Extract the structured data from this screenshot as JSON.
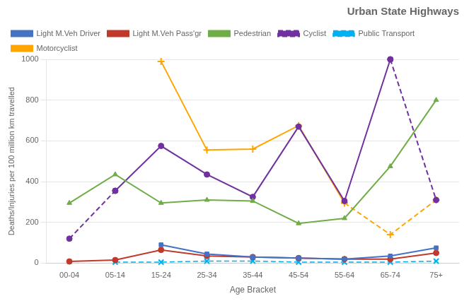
{
  "chart_data": {
    "type": "line",
    "title": "Urban State Highways",
    "x_label": "Age Bracket",
    "y_label": "Deaths/Injuries per 100 million km travelled",
    "categories": [
      "00-04",
      "05-14",
      "15-24",
      "25-34",
      "35-44",
      "45-54",
      "55-64",
      "65-74",
      "75+"
    ],
    "series": [
      {
        "name": "Light M.Veh Driver",
        "color": "#4472C4",
        "marker": "square",
        "line_style": "solid",
        "values": [
          null,
          null,
          90,
          45,
          30,
          25,
          20,
          35,
          75
        ]
      },
      {
        "name": "Light M.Veh Pass'gr",
        "color": "#C0392B",
        "marker": "circle",
        "line_style": "solid",
        "values": [
          8,
          15,
          65,
          35,
          30,
          25,
          20,
          20,
          50
        ]
      },
      {
        "name": "Pedestrian",
        "color": "#70AD47",
        "marker": "triangle",
        "line_style": "solid",
        "values": [
          295,
          435,
          295,
          310,
          305,
          195,
          220,
          475,
          800
        ]
      },
      {
        "name": "Cyclist",
        "color": "#7030A0",
        "marker": "circle",
        "line_style": "dashed",
        "values": [
          120,
          355,
          null,
          null,
          null,
          null,
          null,
          null,
          null
        ]
      },
      {
        "name": "Cyclist",
        "color": "#7030A0",
        "marker": "circle",
        "line_style": "solid",
        "values": [
          null,
          355,
          575,
          435,
          325,
          670,
          305,
          1000,
          null
        ]
      },
      {
        "name": "Cyclist",
        "color": "#7030A0",
        "marker": "circle",
        "line_style": "dashed",
        "values": [
          null,
          null,
          null,
          null,
          null,
          null,
          null,
          1000,
          310
        ]
      },
      {
        "name": "Public Transport",
        "color": "#00B0F0",
        "marker": "x",
        "line_style": "dashed",
        "values": [
          null,
          5,
          5,
          10,
          10,
          5,
          5,
          5,
          10
        ]
      },
      {
        "name": "Motorcyclist",
        "color": "#FFA500",
        "marker": "plus",
        "line_style": "solid",
        "values": [
          null,
          null,
          990,
          555,
          560,
          675,
          295,
          null,
          null
        ]
      },
      {
        "name": "Motorcyclist",
        "color": "#FFA500",
        "marker": "plus",
        "line_style": "dashed",
        "values": [
          null,
          null,
          null,
          null,
          null,
          null,
          295,
          140,
          310
        ]
      }
    ],
    "ylim": [
      0,
      1000
    ],
    "yticks": [
      0,
      200,
      400,
      600,
      800,
      1000
    ],
    "grid": true,
    "legend": "upper left"
  }
}
